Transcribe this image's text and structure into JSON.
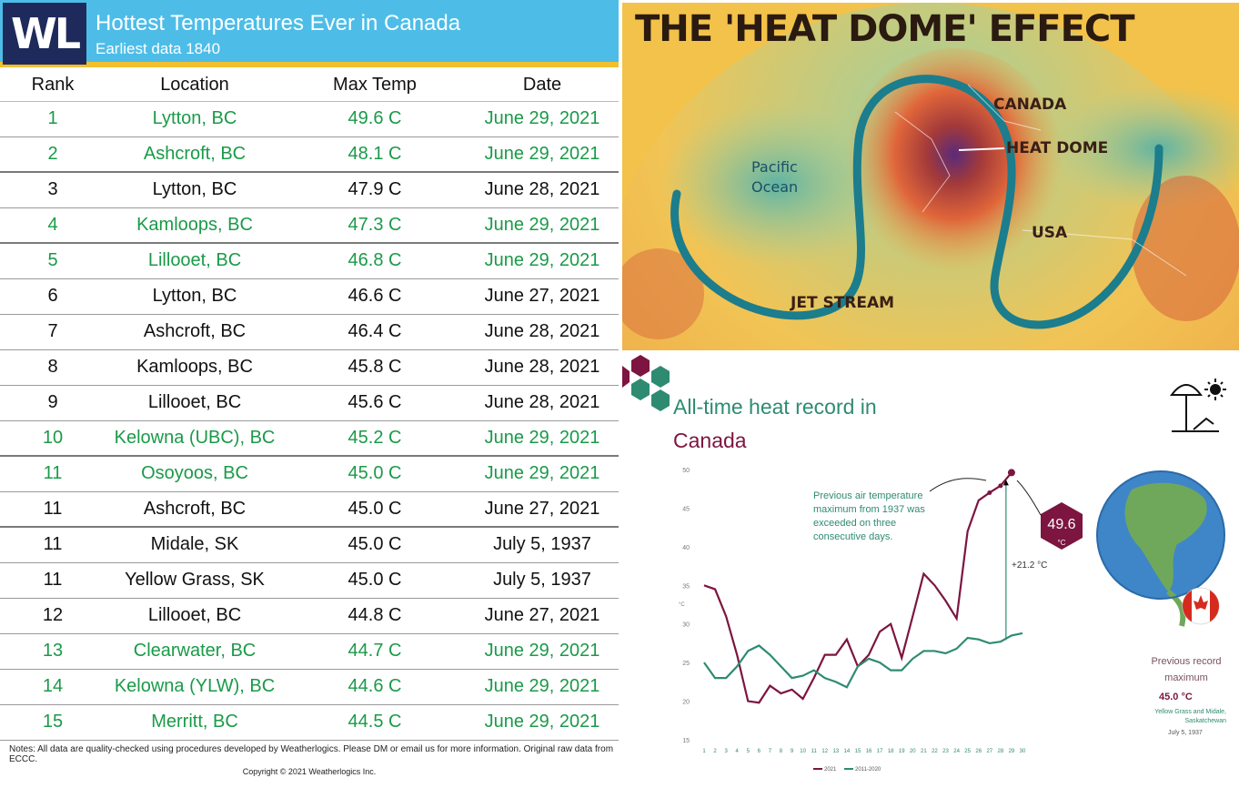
{
  "table": {
    "logo": "WL",
    "title": "Hottest Temperatures Ever in Canada",
    "subtitle": "Earliest data 1840",
    "headers": [
      "Rank",
      "Location",
      "Max Temp",
      "Date"
    ],
    "rows": [
      {
        "rank": "1",
        "location": "Lytton, BC",
        "temp": "49.6 C",
        "date": "June 29, 2021",
        "highlight": true
      },
      {
        "rank": "2",
        "location": "Ashcroft, BC",
        "temp": "48.1 C",
        "date": "June 29, 2021",
        "highlight": true
      },
      {
        "rank": "3",
        "location": "Lytton, BC",
        "temp": "47.9 C",
        "date": "June 28, 2021",
        "highlight": false
      },
      {
        "rank": "4",
        "location": "Kamloops, BC",
        "temp": "47.3 C",
        "date": "June 29, 2021",
        "highlight": true
      },
      {
        "rank": "5",
        "location": "Lillooet, BC",
        "temp": "46.8 C",
        "date": "June 29, 2021",
        "highlight": true
      },
      {
        "rank": "6",
        "location": "Lytton, BC",
        "temp": "46.6 C",
        "date": "June 27, 2021",
        "highlight": false
      },
      {
        "rank": "7",
        "location": "Ashcroft, BC",
        "temp": "46.4 C",
        "date": "June 28, 2021",
        "highlight": false
      },
      {
        "rank": "8",
        "location": "Kamloops, BC",
        "temp": "45.8 C",
        "date": "June 28, 2021",
        "highlight": false
      },
      {
        "rank": "9",
        "location": "Lillooet, BC",
        "temp": "45.6 C",
        "date": "June 28, 2021",
        "highlight": false
      },
      {
        "rank": "10",
        "location": "Kelowna (UBC), BC",
        "temp": "45.2 C",
        "date": "June 29, 2021",
        "highlight": true
      },
      {
        "rank": "11",
        "location": "Osoyoos, BC",
        "temp": "45.0 C",
        "date": "June 29, 2021",
        "highlight": true
      },
      {
        "rank": "11",
        "location": "Ashcroft, BC",
        "temp": "45.0 C",
        "date": "June 27, 2021",
        "highlight": false
      },
      {
        "rank": "11",
        "location": "Midale, SK",
        "temp": "45.0 C",
        "date": "July 5, 1937",
        "highlight": false
      },
      {
        "rank": "11",
        "location": "Yellow Grass, SK",
        "temp": "45.0 C",
        "date": "July 5, 1937",
        "highlight": false
      },
      {
        "rank": "12",
        "location": "Lillooet, BC",
        "temp": "44.8 C",
        "date": "June 27, 2021",
        "highlight": false
      },
      {
        "rank": "13",
        "location": "Clearwater, BC",
        "temp": "44.7 C",
        "date": "June 29, 2021",
        "highlight": true
      },
      {
        "rank": "14",
        "location": "Kelowna (YLW), BC",
        "temp": "44.6 C",
        "date": "June 29, 2021",
        "highlight": true
      },
      {
        "rank": "15",
        "location": "Merritt, BC",
        "temp": "44.5 C",
        "date": "June 29, 2021",
        "highlight": true
      }
    ],
    "notes": "Notes: All data are quality-checked using procedures developed by Weatherlogics. Please DM or email us for more information. Original raw data from ECCC.",
    "copyright": "Copyright © 2021 Weatherlogics Inc.",
    "colors": {
      "header": "#4dbde8",
      "accent": "#f2c02e",
      "logo": "#1f2a5c",
      "highlight": "#1a9a48"
    }
  },
  "heat_dome": {
    "title": "THE 'HEAT DOME' EFFECT",
    "labels": {
      "canada": "CANADA",
      "heat_dome": "HEAT DOME",
      "usa": "USA",
      "jet_stream": "JET STREAM",
      "ocean_line1": "Pacific",
      "ocean_line2": "Ocean"
    }
  },
  "record": {
    "title_line1": "All-time heat record in",
    "title_line2": "Canada",
    "annotation": "Previous air temperature maximum from 1937 was exceeded on three consecutive days.",
    "badge_value": "49.6",
    "badge_unit": "°C",
    "delta": "+21.2 °C",
    "prev_record_label": "Previous record maximum",
    "prev_record_value": "45.0 °C",
    "prev_record_location": "Yellow Grass and Midale, Saskatchewan",
    "prev_record_date": "July 5, 1937",
    "icon": "beach-umbrella-sun-icon",
    "colors": {
      "series_2021": "#7c1540",
      "series_avg": "#2e8b72"
    }
  },
  "chart_data": {
    "type": "line",
    "title": "",
    "xlabel": "",
    "ylabel": "°C",
    "x": [
      1,
      2,
      3,
      4,
      5,
      6,
      7,
      8,
      9,
      10,
      11,
      12,
      13,
      14,
      15,
      16,
      17,
      18,
      19,
      20,
      21,
      22,
      23,
      24,
      25,
      26,
      27,
      28,
      29,
      30
    ],
    "ylim": [
      15,
      50
    ],
    "yticks": [
      15,
      20,
      25,
      30,
      35,
      40,
      45,
      50
    ],
    "series": [
      {
        "name": "2021",
        "color": "#7c1540",
        "values": [
          35,
          34.5,
          31,
          26,
          20,
          19.8,
          22,
          21,
          21.5,
          20.3,
          23,
          26,
          26,
          28,
          24.5,
          26,
          29,
          30,
          25.6,
          31,
          36.5,
          35,
          33,
          30.7,
          42,
          46,
          47,
          47.9,
          49.6,
          null
        ]
      },
      {
        "name": "2011-2020",
        "color": "#2e8b72",
        "values": [
          25,
          23,
          23,
          24.5,
          26.5,
          27.2,
          26,
          24.5,
          23,
          23.3,
          24,
          23,
          22.5,
          21.8,
          24.5,
          25.5,
          25,
          24,
          24,
          25.5,
          26.5,
          26.5,
          26.2,
          26.8,
          28.2,
          28,
          27.5,
          27.7,
          28.5,
          28.8
        ]
      }
    ]
  }
}
